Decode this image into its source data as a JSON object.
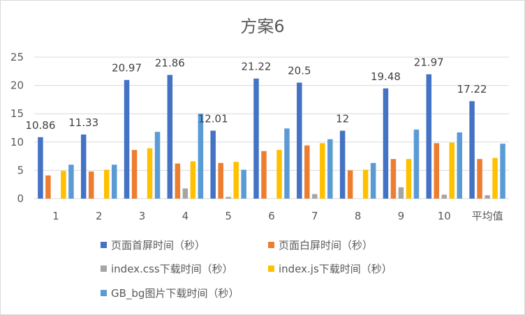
{
  "chart_data": {
    "type": "bar",
    "title": "方案6",
    "xlabel": "",
    "ylabel": "",
    "ylim": [
      0,
      25
    ],
    "yticks": [
      0,
      5,
      10,
      15,
      20,
      25
    ],
    "grid": true,
    "legend_position": "bottom",
    "categories": [
      "1",
      "2",
      "3",
      "4",
      "5",
      "6",
      "7",
      "8",
      "9",
      "10",
      "平均值"
    ],
    "series": [
      {
        "name": "页面首屏时间（秒）",
        "color": "#4472C4",
        "values": [
          10.86,
          11.33,
          20.97,
          21.86,
          12.01,
          21.22,
          20.5,
          12,
          19.48,
          21.97,
          17.22
        ],
        "labels": [
          "10.86",
          "11.33",
          "20.97",
          "21.86",
          "12.01",
          "21.22",
          "20.5",
          "12",
          "19.48",
          "21.97",
          "17.22"
        ]
      },
      {
        "name": "页面白屏时间（秒）",
        "color": "#ED7D31",
        "values": [
          4.1,
          4.8,
          8.6,
          6.2,
          6.3,
          8.4,
          9.4,
          5.0,
          7.0,
          9.8,
          7.0
        ]
      },
      {
        "name": "index.css下载时间（秒）",
        "color": "#A5A5A5",
        "values": [
          0,
          0,
          0,
          1.8,
          0.3,
          0,
          0.8,
          0,
          2.0,
          0.7,
          0.6
        ]
      },
      {
        "name": "index.js下载时间（秒）",
        "color": "#FFC000",
        "values": [
          4.9,
          5.1,
          8.9,
          6.6,
          6.5,
          8.6,
          9.8,
          5.1,
          7.0,
          9.9,
          7.2
        ]
      },
      {
        "name": "GB_bg图片下载时间（秒）",
        "color": "#5B9BD5",
        "values": [
          6.0,
          6.0,
          11.8,
          15.0,
          5.1,
          12.4,
          10.5,
          6.3,
          12.2,
          11.7,
          9.7
        ]
      }
    ]
  }
}
